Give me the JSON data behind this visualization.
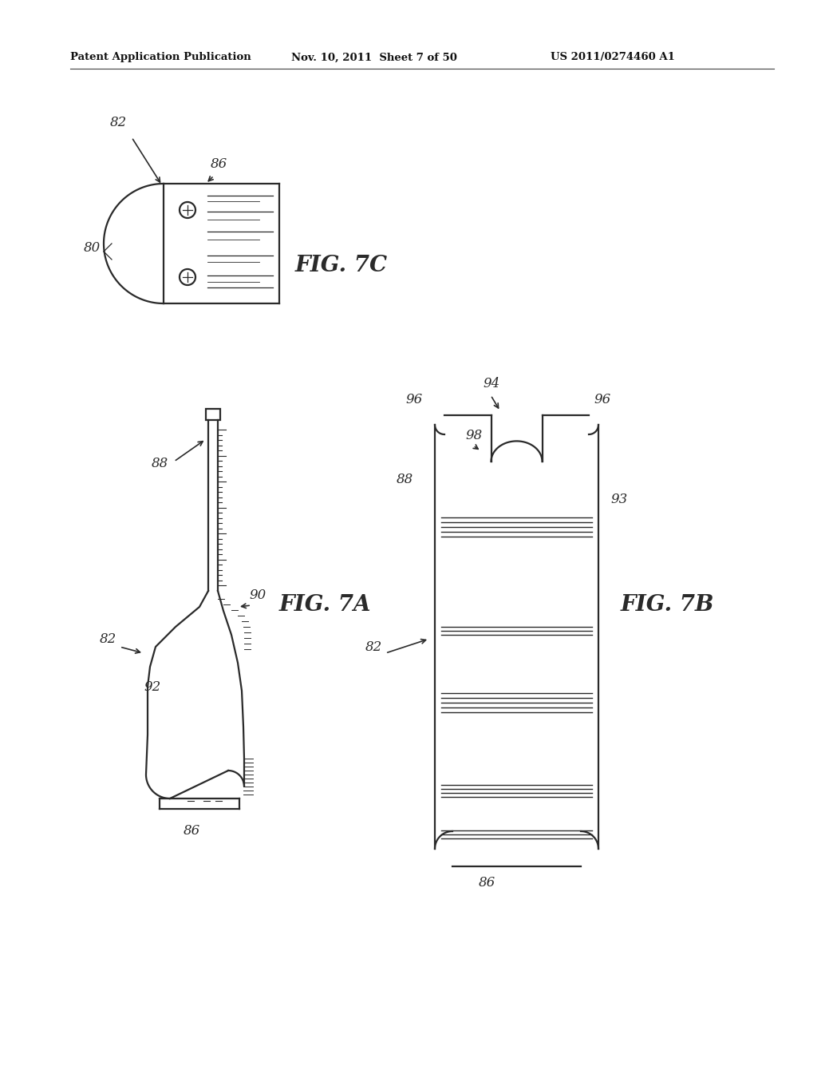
{
  "header_left": "Patent Application Publication",
  "header_mid": "Nov. 10, 2011  Sheet 7 of 50",
  "header_right": "US 2011/0274460 A1",
  "background_color": "#ffffff",
  "line_color": "#2a2a2a",
  "fig7c_label": "FIG. 7C",
  "fig7a_label": "FIG. 7A",
  "fig7b_label": "FIG. 7B"
}
